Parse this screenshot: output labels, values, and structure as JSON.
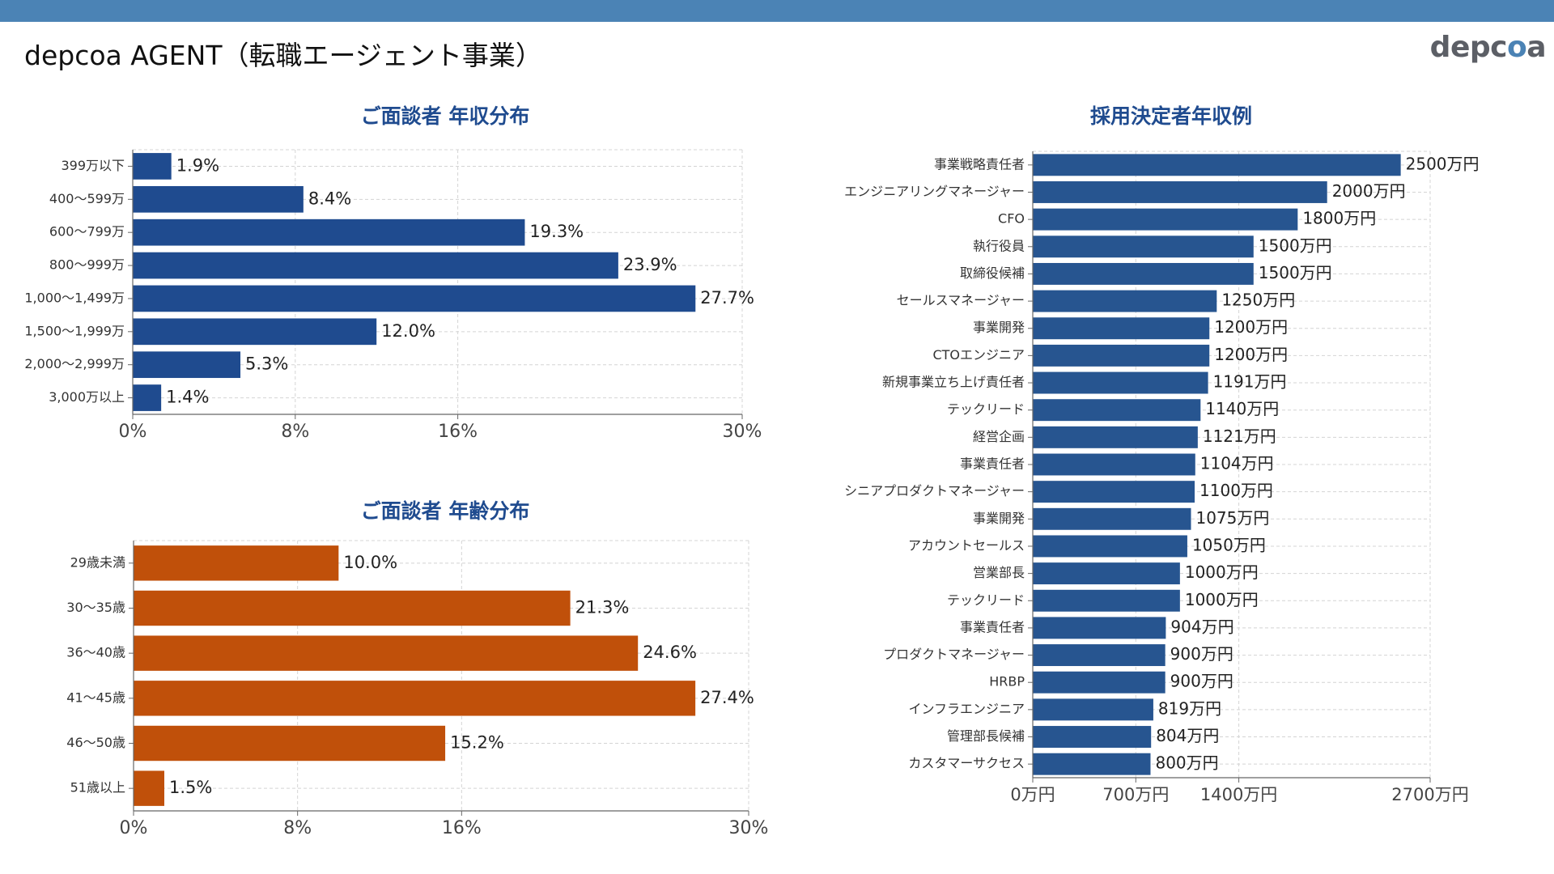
{
  "header": {
    "title": "depcoa AGENT（転職エージェント事業）",
    "logo_text_pre": "depc",
    "logo_text_dot": "o",
    "logo_text_post": "a"
  },
  "colors": {
    "topbar": "#4b83b5",
    "navy_bar": "#1f4b8f",
    "orange_bar": "#c0500a",
    "salary_bar": "#275590",
    "title_blue": "#1f4b8f"
  },
  "chart_data": [
    {
      "id": "income",
      "type": "bar",
      "orientation": "horizontal",
      "title": "ご面談者 年収分布",
      "categories": [
        "399万以下",
        "400〜599万",
        "600〜799万",
        "800〜999万",
        "1,000〜1,499万",
        "1,500〜1,999万",
        "2,000〜2,999万",
        "3,000万以上"
      ],
      "values": [
        1.9,
        8.4,
        19.3,
        23.9,
        27.7,
        12.0,
        5.3,
        1.4
      ],
      "value_labels": [
        "1.9%",
        "8.4%",
        "19.3%",
        "23.9%",
        "27.7%",
        "12.0%",
        "5.3%",
        "1.4%"
      ],
      "xlim": [
        0,
        30
      ],
      "xticks": [
        0,
        8,
        16,
        30
      ],
      "xtick_labels": [
        "0%",
        "8%",
        "16%",
        "30%"
      ],
      "grid": true,
      "color": "#1f4b8f"
    },
    {
      "id": "age",
      "type": "bar",
      "orientation": "horizontal",
      "title": "ご面談者 年齢分布",
      "categories": [
        "29歳未満",
        "30〜35歳",
        "36〜40歳",
        "41〜45歳",
        "46〜50歳",
        "51歳以上"
      ],
      "values": [
        10.0,
        21.3,
        24.6,
        27.4,
        15.2,
        1.5
      ],
      "value_labels": [
        "10.0%",
        "21.3%",
        "24.6%",
        "27.4%",
        "15.2%",
        "1.5%"
      ],
      "xlim": [
        0,
        30
      ],
      "xticks": [
        0,
        8,
        16,
        30
      ],
      "xtick_labels": [
        "0%",
        "8%",
        "16%",
        "30%"
      ],
      "grid": true,
      "color": "#c0500a"
    },
    {
      "id": "salary",
      "type": "bar",
      "orientation": "horizontal",
      "title": "採用決定者年収例",
      "categories": [
        "事業戦略責任者",
        "エンジニアリングマネージャー",
        "CFO",
        "執行役員",
        "取締役候補",
        "セールスマネージャー",
        "事業開発",
        "CTOエンジニア",
        "新規事業立ち上げ責任者",
        "テックリード",
        "経営企画",
        "事業責任者",
        "シニアプロダクトマネージャー",
        "事業開発",
        "アカウントセールス",
        "営業部長",
        "テックリード",
        "事業責任者",
        "プロダクトマネージャー",
        "HRBP",
        "インフラエンジニア",
        "管理部長候補",
        "カスタマーサクセス"
      ],
      "values": [
        2500,
        2000,
        1800,
        1500,
        1500,
        1250,
        1200,
        1200,
        1191,
        1140,
        1121,
        1104,
        1100,
        1075,
        1050,
        1000,
        1000,
        904,
        900,
        900,
        819,
        804,
        800
      ],
      "value_labels": [
        "2500万円",
        "2000万円",
        "1800万円",
        "1500万円",
        "1500万円",
        "1250万円",
        "1200万円",
        "1200万円",
        "1191万円",
        "1140万円",
        "1121万円",
        "1104万円",
        "1100万円",
        "1075万円",
        "1050万円",
        "1000万円",
        "1000万円",
        "904万円",
        "900万円",
        "900万円",
        "819万円",
        "804万円",
        "800万円"
      ],
      "xlim": [
        0,
        2700
      ],
      "xticks": [
        0,
        700,
        1400,
        2700
      ],
      "xtick_labels": [
        "0万円",
        "700万円",
        "1400万円",
        "2700万円"
      ],
      "grid": true,
      "color": "#275590"
    }
  ]
}
